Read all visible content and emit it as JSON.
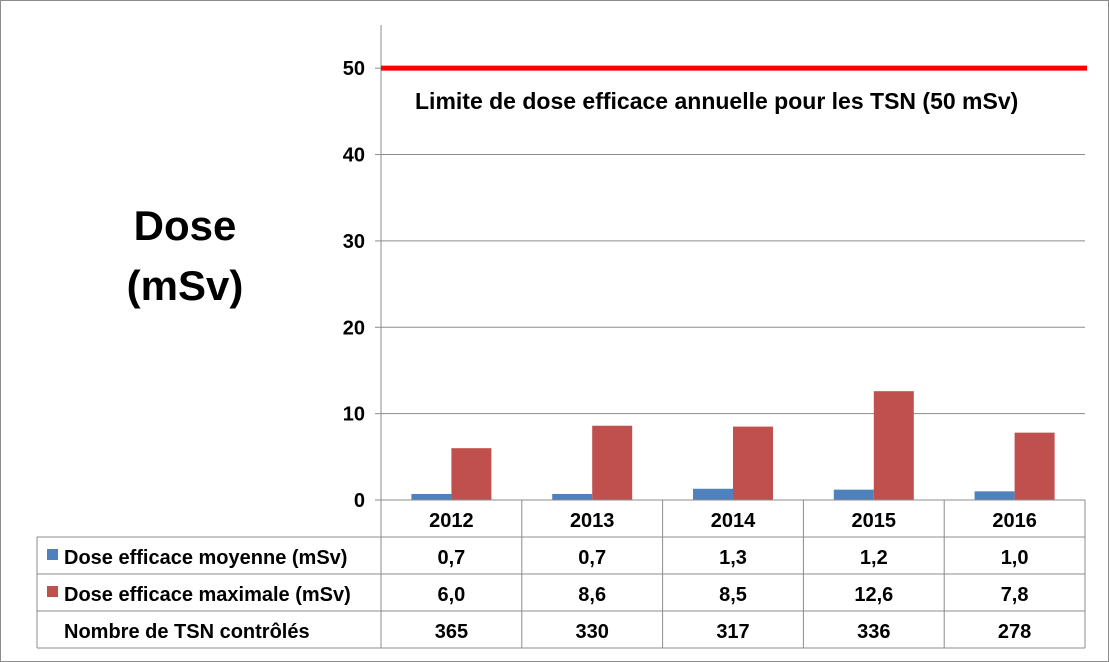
{
  "chart_data": {
    "type": "bar",
    "ylabel_lines": [
      "Dose",
      "(mSv)"
    ],
    "categories": [
      "2012",
      "2013",
      "2014",
      "2015",
      "2016"
    ],
    "ylim": [
      0,
      55
    ],
    "yticks": [
      0,
      10,
      20,
      30,
      40,
      50
    ],
    "grid": true,
    "series": [
      {
        "name": "Dose efficace moyenne (mSv)",
        "color": "#4f81bd",
        "values": [
          0.7,
          0.7,
          1.3,
          1.2,
          1.0
        ],
        "labels": [
          "0,7",
          "0,7",
          "1,3",
          "1,2",
          "1,0"
        ]
      },
      {
        "name": "Dose efficace maximale (mSv)",
        "color": "#c0504d",
        "values": [
          6.0,
          8.6,
          8.5,
          12.6,
          7.8
        ],
        "labels": [
          "6,0",
          "8,6",
          "8,5",
          "12,6",
          "7,8"
        ]
      }
    ],
    "extra_row": {
      "name": "Nombre de TSN contrôlés",
      "values": [
        "365",
        "330",
        "317",
        "336",
        "278"
      ]
    },
    "reference_line": {
      "value": 50,
      "color": "#ff0000",
      "label": "Limite de dose efficace annuelle pour les TSN (50 mSv)"
    },
    "legend": "data-table"
  }
}
